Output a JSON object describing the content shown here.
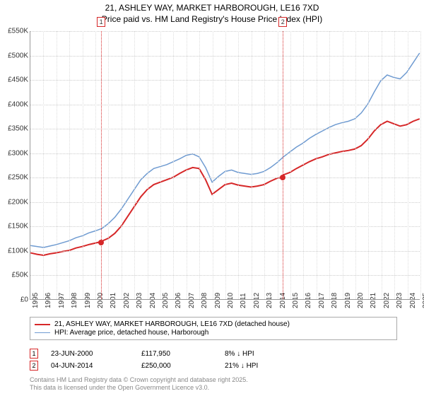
{
  "title_line1": "21, ASHLEY WAY, MARKET HARBOROUGH, LE16 7XD",
  "title_line2": "Price paid vs. HM Land Registry's House Price Index (HPI)",
  "chart": {
    "type": "line",
    "background_color": "#ffffff",
    "grid_color": "#cccccc",
    "ylim": [
      0,
      550000
    ],
    "ytick_step": 50000,
    "yticks": [
      "£0",
      "£50K",
      "£100K",
      "£150K",
      "£200K",
      "£250K",
      "£300K",
      "£350K",
      "£400K",
      "£450K",
      "£500K",
      "£550K"
    ],
    "xlim": [
      1995,
      2025
    ],
    "xticks": [
      "1995",
      "1996",
      "1997",
      "1998",
      "1999",
      "2000",
      "2001",
      "2002",
      "2003",
      "2004",
      "2005",
      "2006",
      "2007",
      "2008",
      "2009",
      "2010",
      "2011",
      "2012",
      "2013",
      "2014",
      "2015",
      "2016",
      "2017",
      "2018",
      "2019",
      "2020",
      "2021",
      "2022",
      "2023",
      "2024",
      "2025"
    ],
    "label_fontsize": 10,
    "title_fontsize": 12,
    "series": [
      {
        "name": "property",
        "label": "21, ASHLEY WAY, MARKET HARBOROUGH, LE16 7XD (detached house)",
        "color": "#d62728",
        "line_width": 2,
        "data": [
          [
            1995,
            95000
          ],
          [
            1995.5,
            92000
          ],
          [
            1996,
            90000
          ],
          [
            1996.5,
            93000
          ],
          [
            1997,
            95000
          ],
          [
            1997.5,
            98000
          ],
          [
            1998,
            100000
          ],
          [
            1998.5,
            105000
          ],
          [
            1999,
            108000
          ],
          [
            1999.5,
            112000
          ],
          [
            2000,
            115000
          ],
          [
            2000.44,
            117950
          ],
          [
            2000.5,
            119000
          ],
          [
            2001,
            125000
          ],
          [
            2001.5,
            135000
          ],
          [
            2002,
            150000
          ],
          [
            2002.5,
            170000
          ],
          [
            2003,
            190000
          ],
          [
            2003.5,
            210000
          ],
          [
            2004,
            225000
          ],
          [
            2004.5,
            235000
          ],
          [
            2005,
            240000
          ],
          [
            2005.5,
            245000
          ],
          [
            2006,
            250000
          ],
          [
            2006.5,
            258000
          ],
          [
            2007,
            265000
          ],
          [
            2007.5,
            270000
          ],
          [
            2008,
            268000
          ],
          [
            2008.5,
            245000
          ],
          [
            2009,
            215000
          ],
          [
            2009.5,
            225000
          ],
          [
            2010,
            235000
          ],
          [
            2010.5,
            238000
          ],
          [
            2011,
            234000
          ],
          [
            2011.5,
            232000
          ],
          [
            2012,
            230000
          ],
          [
            2012.5,
            232000
          ],
          [
            2013,
            235000
          ],
          [
            2013.5,
            242000
          ],
          [
            2014,
            248000
          ],
          [
            2014.42,
            250000
          ],
          [
            2014.5,
            255000
          ],
          [
            2015,
            260000
          ],
          [
            2015.5,
            268000
          ],
          [
            2016,
            275000
          ],
          [
            2016.5,
            282000
          ],
          [
            2017,
            288000
          ],
          [
            2017.5,
            292000
          ],
          [
            2018,
            297000
          ],
          [
            2018.5,
            300000
          ],
          [
            2019,
            303000
          ],
          [
            2019.5,
            305000
          ],
          [
            2020,
            308000
          ],
          [
            2020.5,
            315000
          ],
          [
            2021,
            328000
          ],
          [
            2021.5,
            345000
          ],
          [
            2022,
            358000
          ],
          [
            2022.5,
            365000
          ],
          [
            2023,
            360000
          ],
          [
            2023.5,
            355000
          ],
          [
            2024,
            358000
          ],
          [
            2024.5,
            365000
          ],
          [
            2025,
            370000
          ]
        ]
      },
      {
        "name": "hpi",
        "label": "HPI: Average price, detached house, Harborough",
        "color": "#6f9bd1",
        "line_width": 1.5,
        "data": [
          [
            1995,
            110000
          ],
          [
            1995.5,
            108000
          ],
          [
            1996,
            106000
          ],
          [
            1996.5,
            109000
          ],
          [
            1997,
            112000
          ],
          [
            1997.5,
            116000
          ],
          [
            1998,
            120000
          ],
          [
            1998.5,
            126000
          ],
          [
            1999,
            130000
          ],
          [
            1999.5,
            136000
          ],
          [
            2000,
            140000
          ],
          [
            2000.5,
            145000
          ],
          [
            2001,
            155000
          ],
          [
            2001.5,
            168000
          ],
          [
            2002,
            185000
          ],
          [
            2002.5,
            205000
          ],
          [
            2003,
            225000
          ],
          [
            2003.5,
            245000
          ],
          [
            2004,
            258000
          ],
          [
            2004.5,
            268000
          ],
          [
            2005,
            272000
          ],
          [
            2005.5,
            276000
          ],
          [
            2006,
            282000
          ],
          [
            2006.5,
            288000
          ],
          [
            2007,
            295000
          ],
          [
            2007.5,
            298000
          ],
          [
            2008,
            292000
          ],
          [
            2008.5,
            270000
          ],
          [
            2009,
            240000
          ],
          [
            2009.5,
            252000
          ],
          [
            2010,
            262000
          ],
          [
            2010.5,
            265000
          ],
          [
            2011,
            260000
          ],
          [
            2011.5,
            258000
          ],
          [
            2012,
            256000
          ],
          [
            2012.5,
            258000
          ],
          [
            2013,
            262000
          ],
          [
            2013.5,
            270000
          ],
          [
            2014,
            280000
          ],
          [
            2014.5,
            292000
          ],
          [
            2015,
            302000
          ],
          [
            2015.5,
            312000
          ],
          [
            2016,
            320000
          ],
          [
            2016.5,
            330000
          ],
          [
            2017,
            338000
          ],
          [
            2017.5,
            345000
          ],
          [
            2018,
            352000
          ],
          [
            2018.5,
            358000
          ],
          [
            2019,
            362000
          ],
          [
            2019.5,
            365000
          ],
          [
            2020,
            370000
          ],
          [
            2020.5,
            382000
          ],
          [
            2021,
            400000
          ],
          [
            2021.5,
            425000
          ],
          [
            2022,
            448000
          ],
          [
            2022.5,
            460000
          ],
          [
            2023,
            455000
          ],
          [
            2023.5,
            452000
          ],
          [
            2024,
            465000
          ],
          [
            2024.5,
            485000
          ],
          [
            2025,
            505000
          ]
        ]
      }
    ],
    "markers": [
      {
        "index": "1",
        "year": 2000.44,
        "value": 117950
      },
      {
        "index": "2",
        "year": 2014.42,
        "value": 250000
      }
    ]
  },
  "legend": {
    "items": [
      {
        "color": "#d62728",
        "width": 2,
        "label_path": "chart.series.0.label"
      },
      {
        "color": "#6f9bd1",
        "width": 1.5,
        "label_path": "chart.series.1.label"
      }
    ]
  },
  "datapoints": [
    {
      "index": "1",
      "date": "23-JUN-2000",
      "price": "£117,950",
      "vs_hpi": "8% ↓ HPI"
    },
    {
      "index": "2",
      "date": "04-JUN-2014",
      "price": "£250,000",
      "vs_hpi": "21% ↓ HPI"
    }
  ],
  "attribution_line1": "Contains HM Land Registry data © Crown copyright and database right 2025.",
  "attribution_line2": "This data is licensed under the Open Government Licence v3.0."
}
